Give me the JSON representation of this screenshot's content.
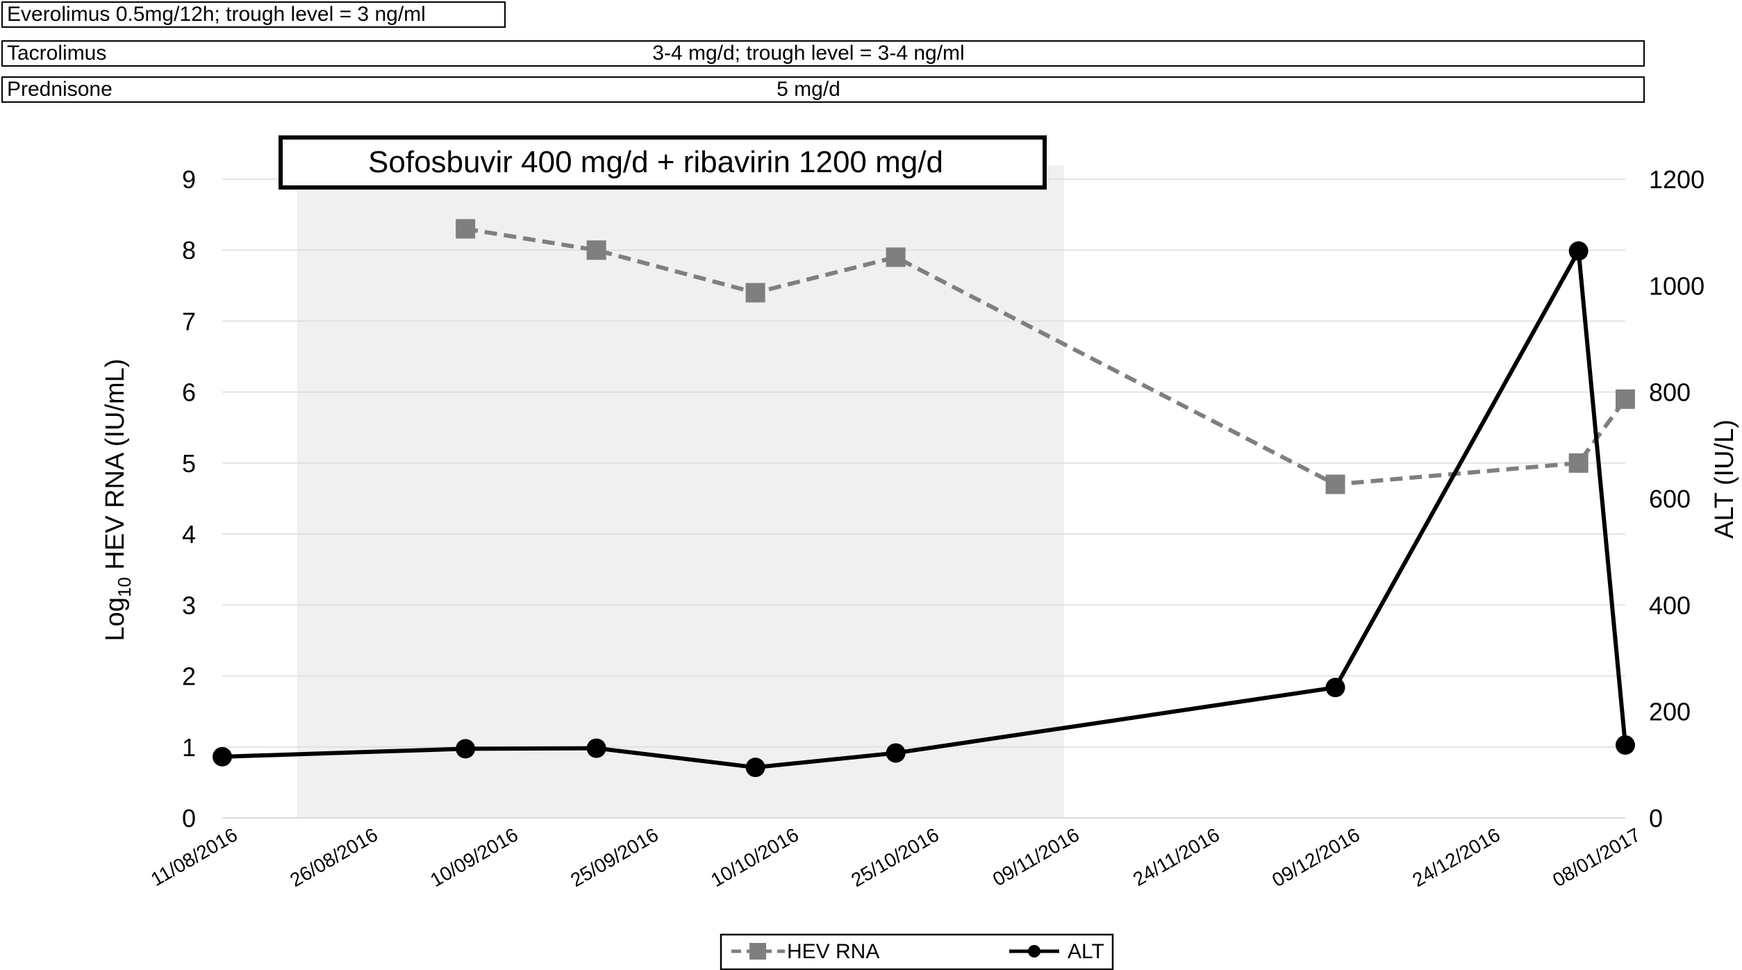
{
  "drug_bars": [
    {
      "name": "Everolimus 0.5mg/12h; trough level = 3 ng/ml",
      "dose": ""
    },
    {
      "name": "Tacrolimus",
      "dose": "3-4 mg/d; trough level = 3-4 ng/ml"
    },
    {
      "name": "Prednisone",
      "dose": "5 mg/d"
    }
  ],
  "chart_data": {
    "type": "line",
    "title": "",
    "annotation": "Sofosbuvir 400 mg/d + ribavirin 1200 mg/d",
    "shaded_period": {
      "start": "19/08/2016",
      "end": "09/11/2016"
    },
    "x_tick_labels": [
      "11/08/2016",
      "26/08/2016",
      "10/09/2016",
      "25/09/2016",
      "10/10/2016",
      "25/10/2016",
      "09/11/2016",
      "24/11/2016",
      "09/12/2016",
      "24/12/2016",
      "08/01/2017"
    ],
    "xlim": [
      "11/08/2016",
      "08/01/2017"
    ],
    "y_left": {
      "label_prefix": "Log",
      "label_sub": "10",
      "label_suffix": " HEV RNA (IU/mL)",
      "ylim": [
        0,
        9
      ],
      "ticks": [
        "0",
        "1",
        "2",
        "3",
        "4",
        "5",
        "6",
        "7",
        "8",
        "9"
      ]
    },
    "y_right": {
      "label": "ALT (IU/L)",
      "ylim": [
        0,
        1200
      ],
      "ticks": [
        "0",
        "200",
        "400",
        "600",
        "800",
        "1000",
        "1200"
      ]
    },
    "grid": true,
    "legend_position": "bottom-center",
    "series": [
      {
        "name": "HEV RNA",
        "axis": "left",
        "style": "dashed",
        "marker": "square",
        "color": "#7f7f7f",
        "x": [
          "06/09/2016",
          "20/09/2016",
          "07/10/2016",
          "22/10/2016",
          "08/12/2016",
          "03/01/2017",
          "08/01/2017"
        ],
        "y": [
          8.3,
          8.0,
          7.4,
          7.9,
          4.7,
          5.0,
          5.9
        ]
      },
      {
        "name": "ALT",
        "axis": "right",
        "style": "solid",
        "marker": "circle",
        "color": "#000000",
        "x": [
          "11/08/2016",
          "06/09/2016",
          "20/09/2016",
          "07/10/2016",
          "22/10/2016",
          "08/12/2016",
          "03/01/2017",
          "08/01/2017"
        ],
        "y": [
          115,
          130,
          131,
          95,
          122,
          245,
          1065,
          137
        ]
      }
    ]
  }
}
